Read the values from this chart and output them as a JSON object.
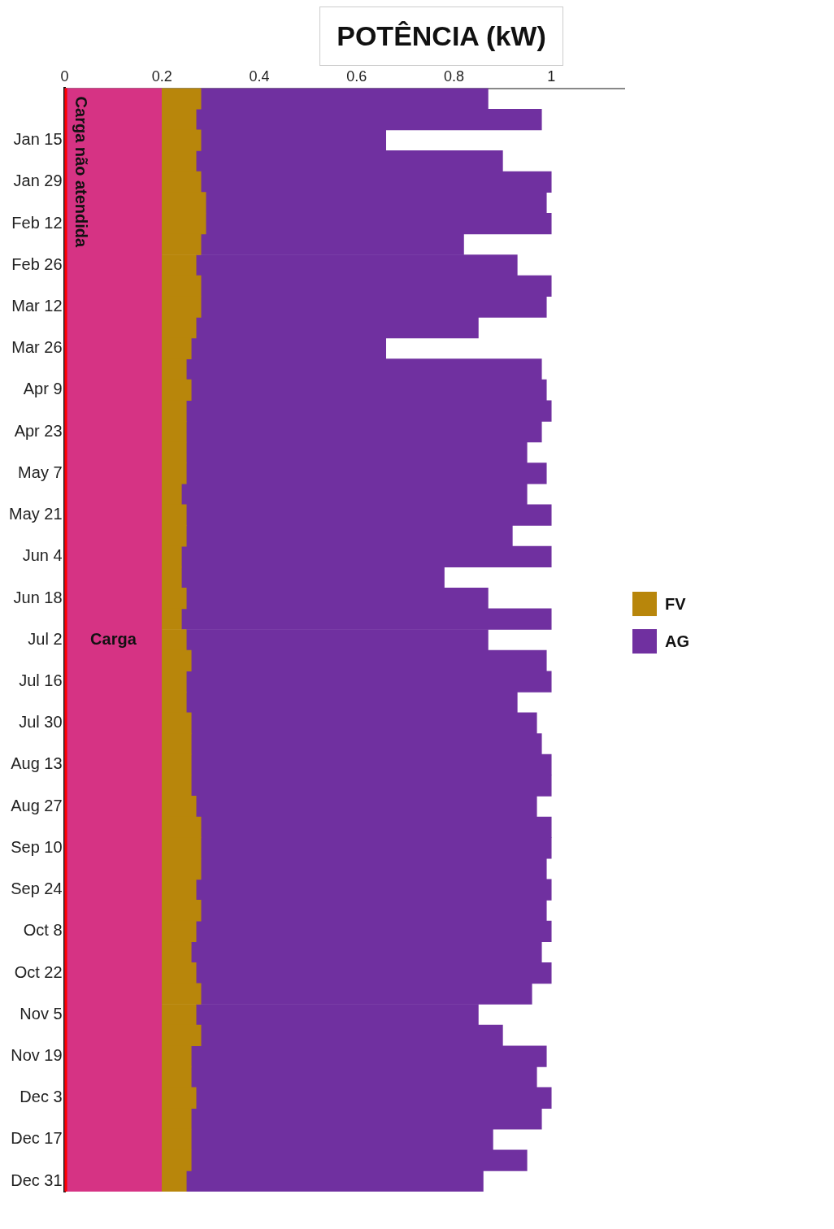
{
  "chart_data": {
    "type": "bar",
    "orientation": "horizontal",
    "title": "POTÊNCIA (kW)",
    "categories": [
      null,
      null,
      "Jan 15",
      null,
      "Jan 29",
      null,
      "Feb 12",
      null,
      "Feb 26",
      null,
      "Mar 12",
      null,
      "Mar 26",
      null,
      "Apr 9",
      null,
      "Apr 23",
      null,
      "May 7",
      null,
      "May 21",
      null,
      "Jun 4",
      null,
      "Jun 18",
      null,
      "Jul 2",
      null,
      "Jul 16",
      null,
      "Jul 30",
      null,
      "Aug 13",
      null,
      "Aug 27",
      null,
      "Sep 10",
      null,
      "Sep 24",
      null,
      "Oct 8",
      null,
      "Oct 22",
      null,
      "Nov 5",
      null,
      "Nov 19",
      null,
      "Dec 3",
      null,
      "Dec 17",
      null,
      "Dec 31"
    ],
    "series": [
      {
        "name": "FV",
        "color": "#b8860b",
        "base": [
          0.2,
          0.2,
          0.2,
          0.2,
          0.2,
          0.2,
          0.2,
          0.2,
          0.2,
          0.2,
          0.2,
          0.2,
          0.2,
          0.2,
          0.2,
          0.2,
          0.2,
          0.2,
          0.2,
          0.2,
          0.2,
          0.2,
          0.2,
          0.2,
          0.2,
          0.2,
          0.2,
          0.2,
          0.2,
          0.2,
          0.2,
          0.2,
          0.2,
          0.2,
          0.2,
          0.2,
          0.2,
          0.2,
          0.2,
          0.2,
          0.2,
          0.2,
          0.2,
          0.2,
          0.2,
          0.2,
          0.2,
          0.2,
          0.2,
          0.2,
          0.2,
          0.2,
          0.2
        ],
        "values": [
          0.08,
          0.07,
          0.08,
          0.07,
          0.08,
          0.09,
          0.09,
          0.08,
          0.07,
          0.08,
          0.08,
          0.07,
          0.06,
          0.05,
          0.06,
          0.05,
          0.05,
          0.05,
          0.05,
          0.04,
          0.05,
          0.05,
          0.04,
          0.04,
          0.05,
          0.04,
          0.05,
          0.06,
          0.05,
          0.05,
          0.06,
          0.06,
          0.06,
          0.06,
          0.07,
          0.08,
          0.08,
          0.08,
          0.07,
          0.08,
          0.07,
          0.06,
          0.07,
          0.08,
          0.07,
          0.08,
          0.06,
          0.06,
          0.07,
          0.06,
          0.06,
          0.06,
          0.05
        ]
      },
      {
        "name": "AG",
        "color": "#7030a0",
        "base": [
          0.28,
          0.27,
          0.28,
          0.27,
          0.28,
          0.29,
          0.29,
          0.28,
          0.27,
          0.28,
          0.28,
          0.27,
          0.26,
          0.25,
          0.26,
          0.25,
          0.25,
          0.25,
          0.25,
          0.24,
          0.25,
          0.25,
          0.24,
          0.24,
          0.25,
          0.24,
          0.25,
          0.26,
          0.25,
          0.25,
          0.26,
          0.26,
          0.26,
          0.26,
          0.27,
          0.28,
          0.28,
          0.28,
          0.27,
          0.28,
          0.27,
          0.26,
          0.27,
          0.28,
          0.27,
          0.28,
          0.26,
          0.26,
          0.27,
          0.26,
          0.26,
          0.26,
          0.25
        ],
        "values": [
          0.59,
          0.71,
          0.38,
          0.63,
          0.72,
          0.7,
          0.71,
          0.54,
          0.66,
          0.72,
          0.71,
          0.58,
          0.4,
          0.73,
          0.73,
          0.75,
          0.73,
          0.7,
          0.74,
          0.71,
          0.75,
          0.67,
          0.76,
          0.54,
          0.62,
          0.76,
          0.62,
          0.73,
          0.75,
          0.68,
          0.71,
          0.72,
          0.74,
          0.74,
          0.7,
          0.72,
          0.72,
          0.71,
          0.73,
          0.71,
          0.73,
          0.72,
          0.73,
          0.68,
          0.58,
          0.62,
          0.73,
          0.71,
          0.73,
          0.72,
          0.62,
          0.69,
          0.61
        ]
      }
    ],
    "bands": [
      {
        "axis": "x",
        "from": 0,
        "to": 0.2,
        "label": "Carga",
        "color": "#d63384"
      },
      {
        "axis": "x",
        "from": 0,
        "to": 0.005,
        "label": "Carga não atendida",
        "color": "#ff0000"
      }
    ],
    "xlim": [
      0,
      1.15
    ],
    "xticks": [
      0,
      0.2,
      0.4,
      0.6,
      0.8,
      1
    ],
    "legend": "right"
  }
}
